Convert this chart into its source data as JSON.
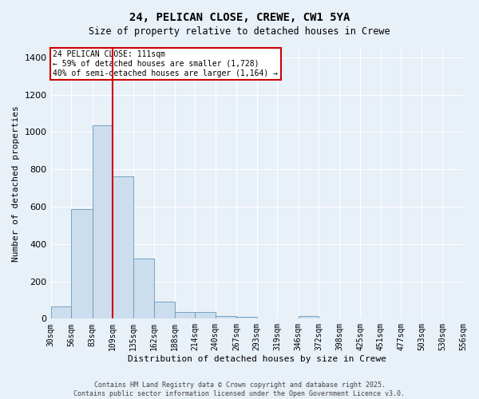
{
  "title": "24, PELICAN CLOSE, CREWE, CW1 5YA",
  "subtitle": "Size of property relative to detached houses in Crewe",
  "xlabel": "Distribution of detached houses by size in Crewe",
  "ylabel": "Number of detached properties",
  "bar_color": "#ccdded",
  "bar_edge_color": "#6699bb",
  "background_color": "#e8f0f8",
  "vline_x": 109,
  "vline_color": "#cc0000",
  "bin_edges": [
    30,
    56,
    83,
    109,
    135,
    162,
    188,
    214,
    240,
    267,
    293,
    319,
    346,
    372,
    398,
    425,
    451,
    477,
    503,
    530,
    556
  ],
  "bin_labels": [
    "30sqm",
    "56sqm",
    "83sqm",
    "109sqm",
    "135sqm",
    "162sqm",
    "188sqm",
    "214sqm",
    "240sqm",
    "267sqm",
    "293sqm",
    "319sqm",
    "346sqm",
    "372sqm",
    "398sqm",
    "425sqm",
    "451sqm",
    "477sqm",
    "503sqm",
    "530sqm",
    "556sqm"
  ],
  "bar_heights": [
    65,
    585,
    1035,
    760,
    320,
    90,
    35,
    35,
    15,
    10,
    0,
    0,
    15,
    0,
    0,
    0,
    0,
    0,
    0,
    0
  ],
  "ylim": [
    0,
    1450
  ],
  "yticks": [
    0,
    200,
    400,
    600,
    800,
    1000,
    1200,
    1400
  ],
  "annotation_title": "24 PELICAN CLOSE: 111sqm",
  "annotation_line1": "← 59% of detached houses are smaller (1,728)",
  "annotation_line2": "40% of semi-detached houses are larger (1,164) →",
  "annotation_box_color": "#ffffff",
  "annotation_box_edge": "#cc0000",
  "footer_line1": "Contains HM Land Registry data © Crown copyright and database right 2025.",
  "footer_line2": "Contains public sector information licensed under the Open Government Licence v3.0.",
  "fig_width": 6.0,
  "fig_height": 5.0,
  "fig_dpi": 100
}
